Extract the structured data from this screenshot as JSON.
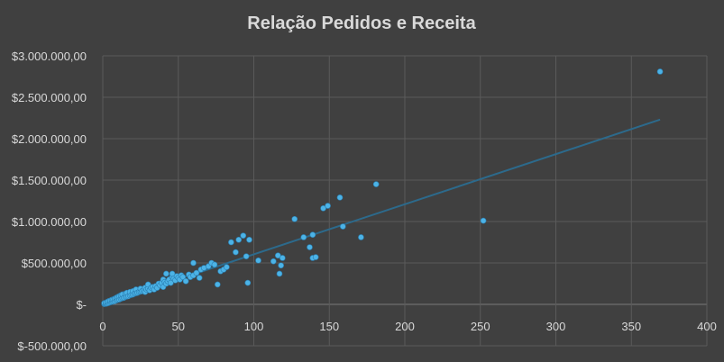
{
  "chart_data": {
    "type": "scatter",
    "title": "Relação Pedidos e Receita",
    "xlabel": "",
    "ylabel": "",
    "xlim": [
      0,
      400
    ],
    "ylim": [
      -500000,
      3000000
    ],
    "x_ticks": [
      0,
      50,
      100,
      150,
      200,
      250,
      300,
      350,
      400
    ],
    "y_ticks": [
      -500000,
      0,
      500000,
      1000000,
      1500000,
      2000000,
      2500000,
      3000000
    ],
    "x_tick_labels": [
      "0",
      "50",
      "100",
      "150",
      "200",
      "250",
      "300",
      "350",
      "400"
    ],
    "y_tick_labels": [
      "$-500.000,00",
      "$-",
      "$500.000,00",
      "$1.000.000,00",
      "$1.500.000,00",
      "$2.000.000,00",
      "$2.500.000,00",
      "$3.000.000,00"
    ],
    "grid": true,
    "legend": "none",
    "colors": {
      "points": "#4cb3e6",
      "trendline": "#2c6a8c",
      "background": "#404040",
      "grid": "#5a5a5a",
      "text": "#d9d9d9"
    },
    "trendline": {
      "x": [
        0,
        369
      ],
      "y": [
        0,
        2230000
      ]
    },
    "series": [
      {
        "points": [
          [
            1,
            5000
          ],
          [
            1,
            15000
          ],
          [
            2,
            8000
          ],
          [
            2,
            20000
          ],
          [
            3,
            12000
          ],
          [
            3,
            30000
          ],
          [
            4,
            18000
          ],
          [
            4,
            40000
          ],
          [
            5,
            25000
          ],
          [
            5,
            45000
          ],
          [
            6,
            30000
          ],
          [
            6,
            55000
          ],
          [
            7,
            35000
          ],
          [
            7,
            60000
          ],
          [
            8,
            40000
          ],
          [
            8,
            70000
          ],
          [
            9,
            50000
          ],
          [
            9,
            80000
          ],
          [
            10,
            55000
          ],
          [
            10,
            90000
          ],
          [
            11,
            60000
          ],
          [
            11,
            100000
          ],
          [
            12,
            70000
          ],
          [
            12,
            110000
          ],
          [
            13,
            75000
          ],
          [
            13,
            120000
          ],
          [
            14,
            80000
          ],
          [
            15,
            90000
          ],
          [
            15,
            130000
          ],
          [
            16,
            95000
          ],
          [
            16,
            140000
          ],
          [
            17,
            100000
          ],
          [
            18,
            110000
          ],
          [
            18,
            150000
          ],
          [
            19,
            115000
          ],
          [
            20,
            120000
          ],
          [
            20,
            160000
          ],
          [
            21,
            130000
          ],
          [
            22,
            135000
          ],
          [
            22,
            180000
          ],
          [
            23,
            140000
          ],
          [
            24,
            150000
          ],
          [
            25,
            155000
          ],
          [
            25,
            190000
          ],
          [
            26,
            160000
          ],
          [
            27,
            170000
          ],
          [
            28,
            150000
          ],
          [
            28,
            200000
          ],
          [
            29,
            180000
          ],
          [
            30,
            190000
          ],
          [
            30,
            240000
          ],
          [
            31,
            170000
          ],
          [
            32,
            200000
          ],
          [
            33,
            210000
          ],
          [
            34,
            180000
          ],
          [
            35,
            220000
          ],
          [
            36,
            200000
          ],
          [
            37,
            250000
          ],
          [
            38,
            230000
          ],
          [
            39,
            260000
          ],
          [
            40,
            210000
          ],
          [
            40,
            300000
          ],
          [
            41,
            270000
          ],
          [
            42,
            250000
          ],
          [
            42,
            370000
          ],
          [
            43,
            280000
          ],
          [
            44,
            300000
          ],
          [
            45,
            260000
          ],
          [
            46,
            330000
          ],
          [
            46,
            370000
          ],
          [
            47,
            310000
          ],
          [
            48,
            290000
          ],
          [
            49,
            340000
          ],
          [
            50,
            320000
          ],
          [
            51,
            300000
          ],
          [
            52,
            350000
          ],
          [
            53,
            330000
          ],
          [
            55,
            280000
          ],
          [
            57,
            360000
          ],
          [
            58,
            330000
          ],
          [
            60,
            350000
          ],
          [
            60,
            500000
          ],
          [
            62,
            380000
          ],
          [
            64,
            320000
          ],
          [
            65,
            420000
          ],
          [
            67,
            440000
          ],
          [
            70,
            460000
          ],
          [
            72,
            500000
          ],
          [
            74,
            480000
          ],
          [
            76,
            240000
          ],
          [
            78,
            400000
          ],
          [
            80,
            420000
          ],
          [
            82,
            450000
          ],
          [
            85,
            750000
          ],
          [
            88,
            630000
          ],
          [
            90,
            780000
          ],
          [
            93,
            830000
          ],
          [
            95,
            580000
          ],
          [
            96,
            260000
          ],
          [
            97,
            780000
          ],
          [
            103,
            530000
          ],
          [
            113,
            520000
          ],
          [
            116,
            590000
          ],
          [
            117,
            370000
          ],
          [
            118,
            470000
          ],
          [
            119,
            560000
          ],
          [
            127,
            1030000
          ],
          [
            133,
            810000
          ],
          [
            137,
            690000
          ],
          [
            139,
            840000
          ],
          [
            139,
            560000
          ],
          [
            141,
            570000
          ],
          [
            146,
            1160000
          ],
          [
            149,
            1190000
          ],
          [
            157,
            1290000
          ],
          [
            159,
            940000
          ],
          [
            171,
            810000
          ],
          [
            181,
            1450000
          ],
          [
            252,
            1010000
          ],
          [
            369,
            2810000
          ]
        ]
      }
    ]
  }
}
